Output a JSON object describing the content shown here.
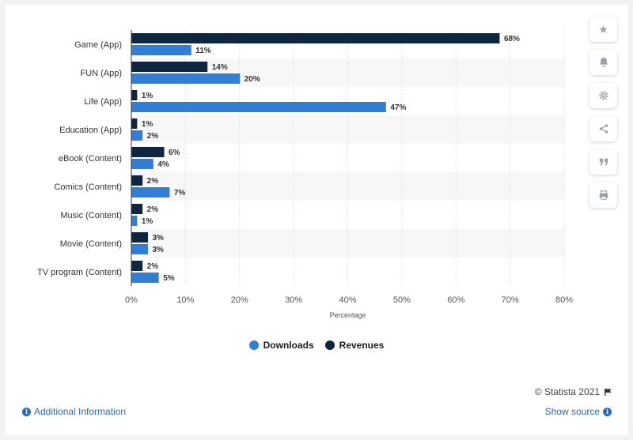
{
  "chart_data": {
    "type": "bar",
    "orientation": "horizontal",
    "categories": [
      "Game (App)",
      "FUN (App)",
      "Life (App)",
      "Education (App)",
      "eBook (Content)",
      "Comics (Content)",
      "Music (Content)",
      "Movie (Content)",
      "TV program (Content)"
    ],
    "series": [
      {
        "name": "Revenues",
        "color": "#0f2641",
        "values": [
          68,
          14,
          1,
          1,
          6,
          2,
          2,
          3,
          2
        ]
      },
      {
        "name": "Downloads",
        "color": "#2f7ed8",
        "values": [
          11,
          20,
          47,
          2,
          4,
          7,
          1,
          3,
          5
        ]
      }
    ],
    "value_suffix": "%",
    "xlabel": "Percentage",
    "xlim": [
      0,
      80
    ],
    "xticks": [
      "0%",
      "10%",
      "20%",
      "30%",
      "40%",
      "50%",
      "60%",
      "70%",
      "80%"
    ],
    "grid": true,
    "legend_position": "bottom-center",
    "legend": [
      {
        "name": "Downloads",
        "color": "#2f7ed8"
      },
      {
        "name": "Revenues",
        "color": "#0f2641"
      }
    ]
  },
  "sidebar_icons": [
    "star-icon",
    "bell-icon",
    "gear-icon",
    "share-icon",
    "quote-icon",
    "print-icon"
  ],
  "footer": {
    "credit": "© Statista 2021",
    "additional_info": "Additional Information",
    "show_source": "Show source"
  }
}
